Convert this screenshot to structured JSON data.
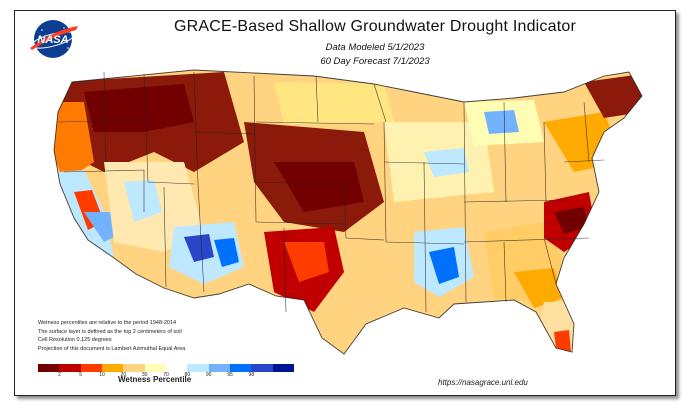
{
  "title": "GRACE-Based Shallow Groundwater Drought Indicator",
  "subtitle_modeled": "Data Modeled 5/1/2023",
  "subtitle_forecast": "60 Day Forecast 7/1/2023",
  "logo_text": "NASA",
  "notes": [
    "Wetness percentiles are relative to the period 1948-2014",
    "The surface layer is defined as the top 2 centimeters of soil",
    "Cell Resolution 0.125 degrees",
    "Projection of this document is Lambert Azimuthal Equal Area"
  ],
  "legend": {
    "title": "Wetness Percentile",
    "ticks": [
      "2",
      "5",
      "10",
      "20",
      "30",
      "70",
      "80",
      "90",
      "95",
      "98"
    ],
    "colors": [
      "#730000",
      "#c00000",
      "#ff3c00",
      "#ffaa00",
      "#ffd37f",
      "#fffeb4",
      "#ffffff",
      "#bee8ff",
      "#73b2ff",
      "#0070ff",
      "#2a46c8",
      "#001294"
    ]
  },
  "source_url": "https://nasagrace.unl.edu"
}
